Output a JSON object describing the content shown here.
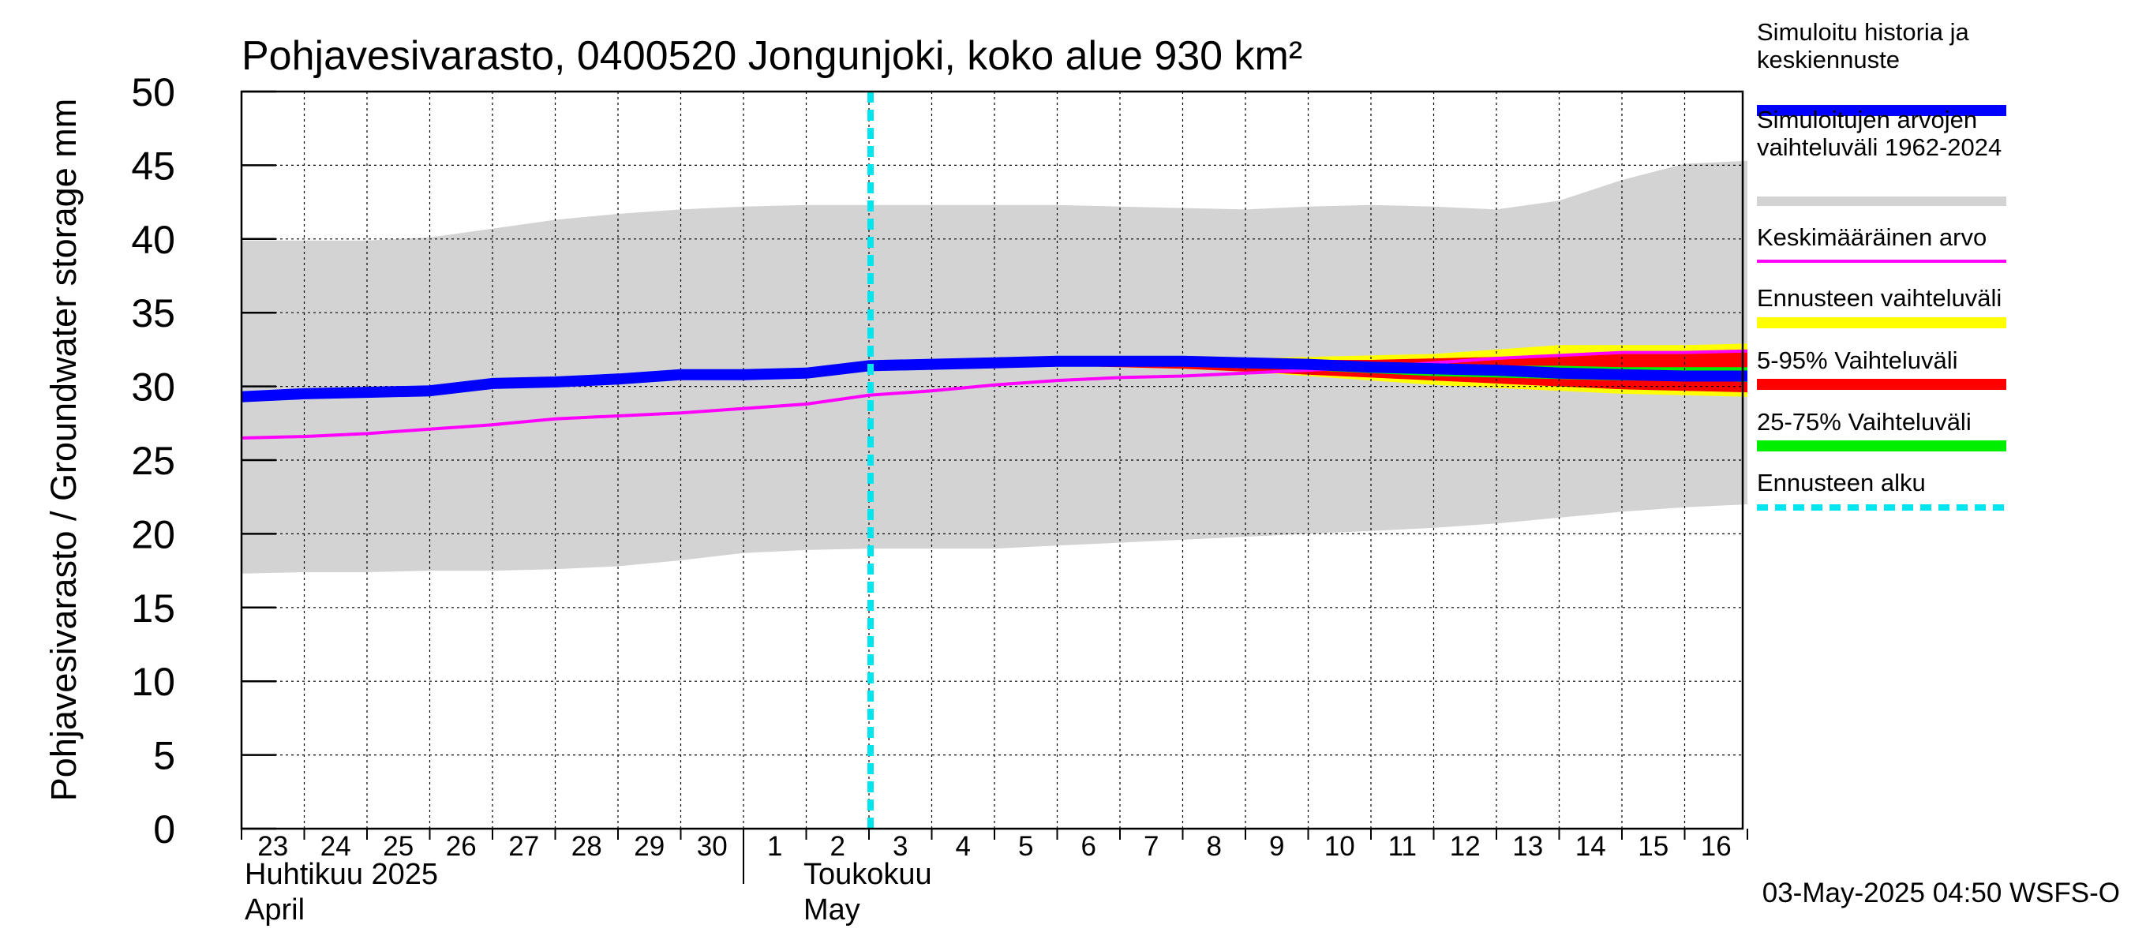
{
  "chart_data": {
    "type": "line",
    "title": "Pohjavesivarasto, 0400520 Jongunjoki, koko alue 930 km²",
    "ylabel": "Pohjavesivarasto / Groundwater storage   mm",
    "ylim": [
      0,
      50
    ],
    "yticks": [
      0,
      5,
      10,
      15,
      20,
      25,
      30,
      35,
      40,
      45,
      50
    ],
    "x_days": [
      "23",
      "24",
      "25",
      "26",
      "27",
      "28",
      "29",
      "30",
      "1",
      "2",
      "3",
      "4",
      "5",
      "6",
      "7",
      "8",
      "9",
      "10",
      "11",
      "12",
      "13",
      "14",
      "15",
      "16"
    ],
    "x_dates": [
      "2025-04-23",
      "2025-04-24",
      "2025-04-25",
      "2025-04-26",
      "2025-04-27",
      "2025-04-28",
      "2025-04-29",
      "2025-04-30",
      "2025-05-01",
      "2025-05-02",
      "2025-05-03",
      "2025-05-04",
      "2025-05-05",
      "2025-05-06",
      "2025-05-07",
      "2025-05-08",
      "2025-05-09",
      "2025-05-10",
      "2025-05-11",
      "2025-05-12",
      "2025-05-13",
      "2025-05-14",
      "2025-05-15",
      "2025-05-16",
      "2025-05-17"
    ],
    "months": [
      {
        "label_fi": "Huhtikuu  2025",
        "label_en": "April"
      },
      {
        "label_fi": "Toukokuu",
        "label_en": "May"
      }
    ],
    "forecast_start": "2025-05-03",
    "grid": true,
    "legend_position": "right",
    "colors": {
      "history": "#0000ff",
      "range_hist": "#d3d3d3",
      "mean": "#ff00ff",
      "forecast_range": "#ffff00",
      "p5_95": "#ff0000",
      "p25_75": "#00ee00",
      "forecast_start": "#00e5ee"
    },
    "series": [
      {
        "key": "range_hist",
        "name": "Simuloitujen arvojen vaihteluväli 1962-2024",
        "type": "band",
        "lower": [
          17.3,
          17.4,
          17.4,
          17.5,
          17.5,
          17.6,
          17.8,
          18.2,
          18.7,
          18.9,
          19.0,
          19.0,
          19.0,
          19.2,
          19.4,
          19.6,
          19.8,
          20.0,
          20.2,
          20.4,
          20.7,
          21.1,
          21.5,
          21.8,
          22.0
        ],
        "upper": [
          39.9,
          39.9,
          39.9,
          40.1,
          40.7,
          41.3,
          41.7,
          42.0,
          42.2,
          42.3,
          42.3,
          42.3,
          42.3,
          42.3,
          42.2,
          42.1,
          42.0,
          42.2,
          42.3,
          42.2,
          42.0,
          42.6,
          44.0,
          45.1,
          45.3
        ]
      },
      {
        "key": "forecast_range",
        "name": "Ennusteen vaihteluväli",
        "type": "band",
        "lower": [
          null,
          null,
          null,
          null,
          null,
          null,
          null,
          null,
          null,
          null,
          31.2,
          31.3,
          31.4,
          31.4,
          31.3,
          31.2,
          31.0,
          30.7,
          30.4,
          30.1,
          29.9,
          29.7,
          29.5,
          29.4,
          29.3
        ],
        "upper": [
          null,
          null,
          null,
          null,
          null,
          null,
          null,
          null,
          null,
          null,
          31.3,
          31.6,
          31.8,
          31.9,
          31.9,
          31.9,
          31.9,
          32.0,
          32.1,
          32.2,
          32.5,
          32.8,
          32.8,
          32.8,
          32.9
        ]
      },
      {
        "key": "p5_95",
        "name": "5-95% Vaihteluväli",
        "type": "band",
        "lower": [
          null,
          null,
          null,
          null,
          null,
          null,
          null,
          null,
          null,
          null,
          31.2,
          31.3,
          31.4,
          31.4,
          31.3,
          31.2,
          31.0,
          30.8,
          30.6,
          30.4,
          30.2,
          30.0,
          29.8,
          29.7,
          29.6
        ],
        "upper": [
          null,
          null,
          null,
          null,
          null,
          null,
          null,
          null,
          null,
          null,
          31.3,
          31.5,
          31.7,
          31.8,
          31.8,
          31.8,
          31.8,
          31.8,
          31.8,
          31.9,
          32.0,
          32.1,
          32.2,
          32.3,
          32.4
        ]
      },
      {
        "key": "p25_75",
        "name": "25-75% Vaihteluväli",
        "type": "band",
        "lower": [
          null,
          null,
          null,
          null,
          null,
          null,
          null,
          null,
          null,
          null,
          31.2,
          31.3,
          31.4,
          31.5,
          31.5,
          31.4,
          31.3,
          31.1,
          30.9,
          30.7,
          30.6,
          30.5,
          30.4,
          30.4,
          30.3
        ],
        "upper": [
          null,
          null,
          null,
          null,
          null,
          null,
          null,
          null,
          null,
          null,
          31.3,
          31.5,
          31.6,
          31.7,
          31.7,
          31.7,
          31.7,
          31.6,
          31.5,
          31.5,
          31.4,
          31.4,
          31.3,
          31.3,
          31.3
        ]
      },
      {
        "key": "mean",
        "name": "Keskimääräinen arvo",
        "type": "line",
        "values": [
          26.5,
          26.6,
          26.8,
          27.1,
          27.4,
          27.8,
          28.0,
          28.2,
          28.5,
          28.8,
          29.4,
          29.7,
          30.1,
          30.4,
          30.6,
          30.7,
          30.9,
          31.1,
          31.3,
          31.6,
          31.9,
          32.1,
          32.3,
          32.3,
          32.4
        ]
      },
      {
        "key": "history",
        "name": "Simuloitu historia ja keskiennuste",
        "type": "line",
        "values": [
          29.3,
          29.5,
          29.6,
          29.7,
          30.2,
          30.3,
          30.5,
          30.8,
          30.8,
          30.9,
          31.4,
          31.5,
          31.6,
          31.7,
          31.7,
          31.7,
          31.6,
          31.5,
          31.3,
          31.2,
          31.1,
          30.9,
          30.8,
          30.7,
          30.7
        ]
      }
    ],
    "legend": [
      {
        "key": "history",
        "lines": [
          "Simuloitu historia ja",
          "keskiennuste"
        ]
      },
      {
        "key": "range_hist",
        "lines": [
          "Simuloitujen arvojen",
          "vaihteluväli 1962-2024"
        ]
      },
      {
        "key": "mean",
        "lines": [
          "Keskimääräinen arvo"
        ]
      },
      {
        "key": "forecast_range",
        "lines": [
          "Ennusteen vaihteluväli"
        ]
      },
      {
        "key": "p5_95",
        "lines": [
          "5-95% Vaihteluväli"
        ]
      },
      {
        "key": "p25_75",
        "lines": [
          "25-75% Vaihteluväli"
        ]
      },
      {
        "key": "forecast_start",
        "lines": [
          "Ennusteen alku"
        ]
      }
    ],
    "footer": "03-May-2025 04:50 WSFS-O"
  }
}
